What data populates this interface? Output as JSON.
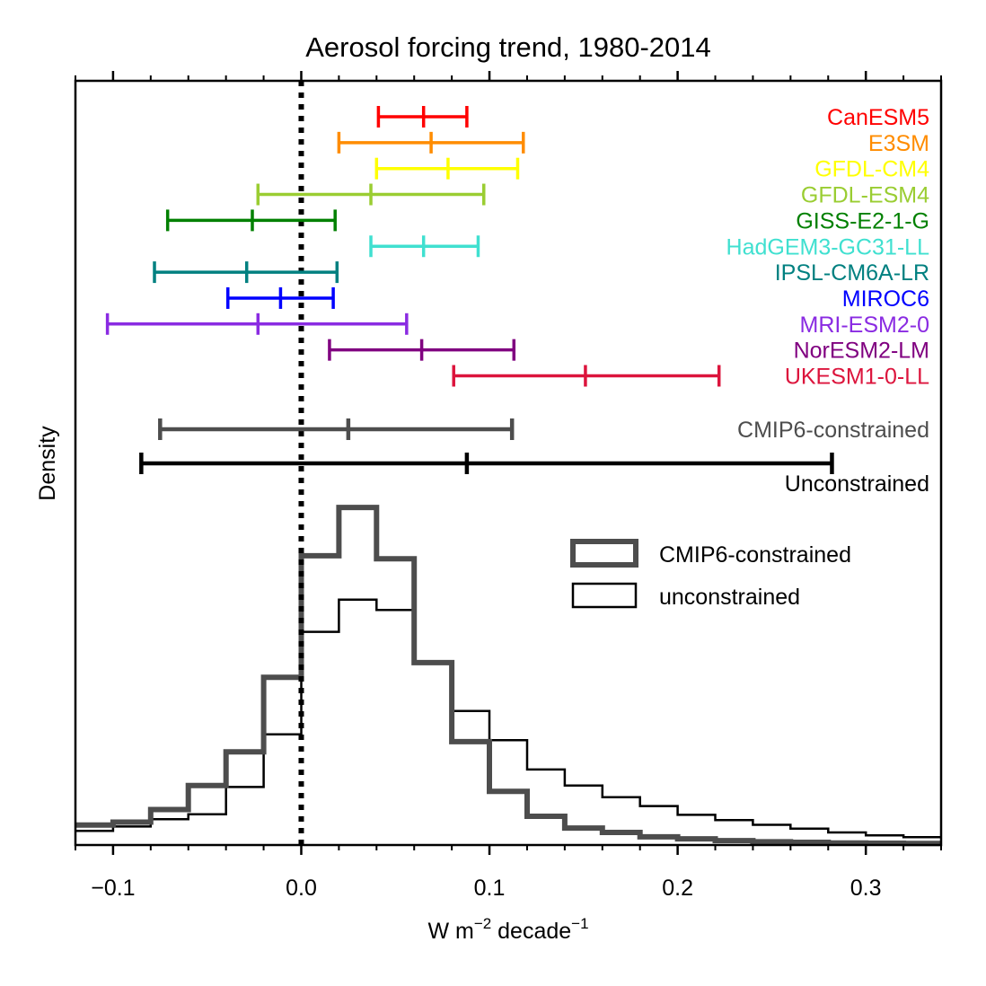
{
  "chart_data": {
    "type": "histogram",
    "title": "Aerosol forcing trend, 1980-2014",
    "xlabel": {
      "base": "W m",
      "exp1": "−2",
      "mid": " decade",
      "exp2": "−1"
    },
    "ylabel": "Density",
    "xlim": [
      -0.12,
      0.34
    ],
    "xticks": [
      -0.1,
      0.0,
      0.1,
      0.2,
      0.3
    ],
    "xtick_labels": [
      "−0.1",
      "0.0",
      "0.1",
      "0.2",
      "0.3"
    ],
    "zero_line": {
      "x": 0.0,
      "style": "dotted",
      "color": "#000000"
    },
    "models": [
      {
        "name": "CanESM5",
        "color": "#ff0000",
        "low": 0.041,
        "mid": 0.065,
        "high": 0.088
      },
      {
        "name": "E3SM",
        "color": "#ff8c00",
        "low": 0.02,
        "mid": 0.069,
        "high": 0.118
      },
      {
        "name": "GFDL-CM4",
        "color": "#ffff00",
        "low": 0.04,
        "mid": 0.078,
        "high": 0.115
      },
      {
        "name": "GFDL-ESM4",
        "color": "#9acd32",
        "low": -0.023,
        "mid": 0.037,
        "high": 0.097
      },
      {
        "name": "GISS-E2-1-G",
        "color": "#008000",
        "low": -0.071,
        "mid": -0.026,
        "high": 0.018
      },
      {
        "name": "HadGEM3-GC31-LL",
        "color": "#40e0d0",
        "low": 0.037,
        "mid": 0.065,
        "high": 0.094
      },
      {
        "name": "IPSL-CM6A-LR",
        "color": "#008080",
        "low": -0.078,
        "mid": -0.029,
        "high": 0.019
      },
      {
        "name": "MIROC6",
        "color": "#0000ff",
        "low": -0.039,
        "mid": -0.011,
        "high": 0.017
      },
      {
        "name": "MRI-ESM2-0",
        "color": "#8a2be2",
        "low": -0.103,
        "mid": -0.023,
        "high": 0.056
      },
      {
        "name": "NorESM2-LM",
        "color": "#800080",
        "low": 0.015,
        "mid": 0.064,
        "high": 0.113
      },
      {
        "name": "UKESM1-0-LL",
        "color": "#dc143c",
        "low": 0.081,
        "mid": 0.151,
        "high": 0.222
      }
    ],
    "summary_ranges": [
      {
        "name": "CMIP6-constrained",
        "color": "#4d4d4d",
        "low": -0.075,
        "mid": 0.025,
        "high": 0.112
      },
      {
        "name": "Unconstrained",
        "color": "#000000",
        "low": -0.085,
        "mid": 0.088,
        "high": 0.282
      }
    ],
    "bin_edges": [
      -0.12,
      -0.1,
      -0.08,
      -0.06,
      -0.04,
      -0.02,
      0.0,
      0.02,
      0.04,
      0.06,
      0.08,
      0.1,
      0.12,
      0.14,
      0.16,
      0.18,
      0.2,
      0.22,
      0.24,
      0.26,
      0.28,
      0.3,
      0.32,
      0.34
    ],
    "series": [
      {
        "name": "CMIP6-constrained",
        "color": "#4d4d4d",
        "linewidth": 6,
        "values": [
          0.065,
          0.075,
          0.118,
          0.2,
          0.315,
          0.57,
          0.985,
          1.15,
          0.975,
          0.62,
          0.35,
          0.18,
          0.095,
          0.055,
          0.04,
          0.025,
          0.018,
          0.012,
          0.008,
          0.006,
          0.004,
          0.003,
          0.002
        ]
      },
      {
        "name": "unconstrained",
        "color": "#000000",
        "linewidth": 2.5,
        "values": [
          0.045,
          0.06,
          0.085,
          0.102,
          0.195,
          0.375,
          0.725,
          0.835,
          0.8,
          0.625,
          0.455,
          0.355,
          0.255,
          0.2,
          0.16,
          0.13,
          0.1,
          0.082,
          0.066,
          0.053,
          0.04,
          0.03,
          0.024
        ]
      }
    ],
    "legend": {
      "placement": "center-right",
      "entries": [
        "CMIP6-constrained",
        "unconstrained"
      ]
    },
    "grid": false,
    "top_ticks": true
  }
}
